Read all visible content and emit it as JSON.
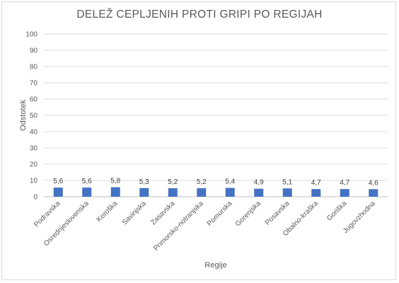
{
  "chart_data": {
    "type": "bar",
    "title": "DELEŽ CEPLJENIH PROTI GRIPI PO REGIJAH",
    "xlabel": "Regije",
    "ylabel": "Odstotek",
    "ylim": [
      0,
      100
    ],
    "yticks": [
      "0",
      "10",
      "20",
      "30",
      "40",
      "50",
      "60",
      "70",
      "80",
      "90",
      "100"
    ],
    "grid": true,
    "bar_color": "#4472c4",
    "categories": [
      "Podravska",
      "Osrednjeslovenska",
      "Koroška",
      "Savinjska",
      "Zasavska",
      "Primorsko-notranjska",
      "Pomurska",
      "Gorenjska",
      "Posavska",
      "Obalno-kraška",
      "Goriška",
      "Jugovzhodna"
    ],
    "values": [
      5.6,
      5.6,
      5.8,
      5.3,
      5.2,
      5.2,
      5.4,
      4.9,
      5.1,
      4.7,
      4.7,
      4.6
    ],
    "data_labels": [
      "5,6",
      "5,6",
      "5,8",
      "5,3",
      "5,2",
      "5,2",
      "5,4",
      "4,9",
      "5,1",
      "4,7",
      "4,7",
      "4,6"
    ]
  }
}
